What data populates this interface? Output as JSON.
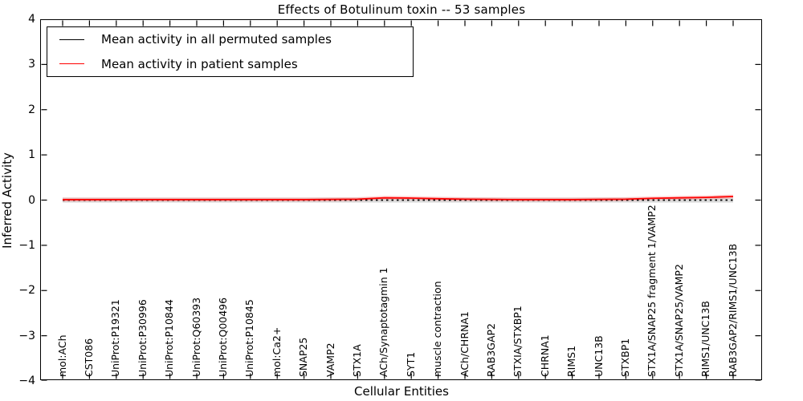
{
  "chart_data": {
    "type": "line",
    "title": "Effects of Botulinum toxin -- 53 samples",
    "xlabel": "Cellular Entities",
    "ylabel": "Inferred Activity",
    "ylim": [
      -4,
      4
    ],
    "yticks": [
      4,
      3,
      2,
      1,
      0,
      -1,
      -2,
      -3,
      -4
    ],
    "grid": false,
    "legend_position": "upper left",
    "categories": [
      "mol:ACh",
      "CST086",
      "UniProt:P19321",
      "UniProt:P30996",
      "UniProt:P10844",
      "UniProt:Q60393",
      "UniProt:Q00496",
      "UniProt:P10845",
      "mol:Ca2+",
      "SNAP25",
      "VAMP2",
      "STX1A",
      "ACh/Synaptotagmin 1",
      "SYT1",
      "muscle contraction",
      "ACh/CHRNA1",
      "RAB3GAP2",
      "STXIA/STXBP1",
      "CHRNA1",
      "RIMS1",
      "UNC13B",
      "STXBP1",
      "STX1A/SNAP25 fragment 1/VAMP2",
      "STX1A/SNAP25/VAMP2",
      "RIMS1/UNC13B",
      "RAB3GAP2/RIMS1/UNC13B"
    ],
    "series": [
      {
        "name": "Mean activity in all permuted samples",
        "color": "#000000",
        "plot_line_style": "dotted",
        "values": [
          0,
          0,
          0,
          0,
          0,
          0,
          0,
          0,
          0,
          0,
          0,
          0,
          0,
          0,
          0,
          0,
          0,
          0,
          0,
          0,
          0,
          0,
          0,
          0,
          0,
          0
        ]
      },
      {
        "name": "Mean activity in patient samples",
        "color": "#ff0000",
        "plot_line_style": "solid",
        "values": [
          0.01,
          0.01,
          0.01,
          0.01,
          0.01,
          0.01,
          0.01,
          0.01,
          0.01,
          0.01,
          0.015,
          0.02,
          0.05,
          0.045,
          0.03,
          0.02,
          0.015,
          0.01,
          0.01,
          0.01,
          0.015,
          0.02,
          0.04,
          0.05,
          0.06,
          0.08
        ]
      }
    ],
    "bands": [
      {
        "name": "permuted-uncertainty-band",
        "color": "#999999",
        "opacity": 0.35,
        "half_width": 0.055
      },
      {
        "name": "patient-uncertainty-band",
        "color": "#ff6666",
        "opacity": 0.28,
        "half_width": 0.045
      }
    ]
  }
}
